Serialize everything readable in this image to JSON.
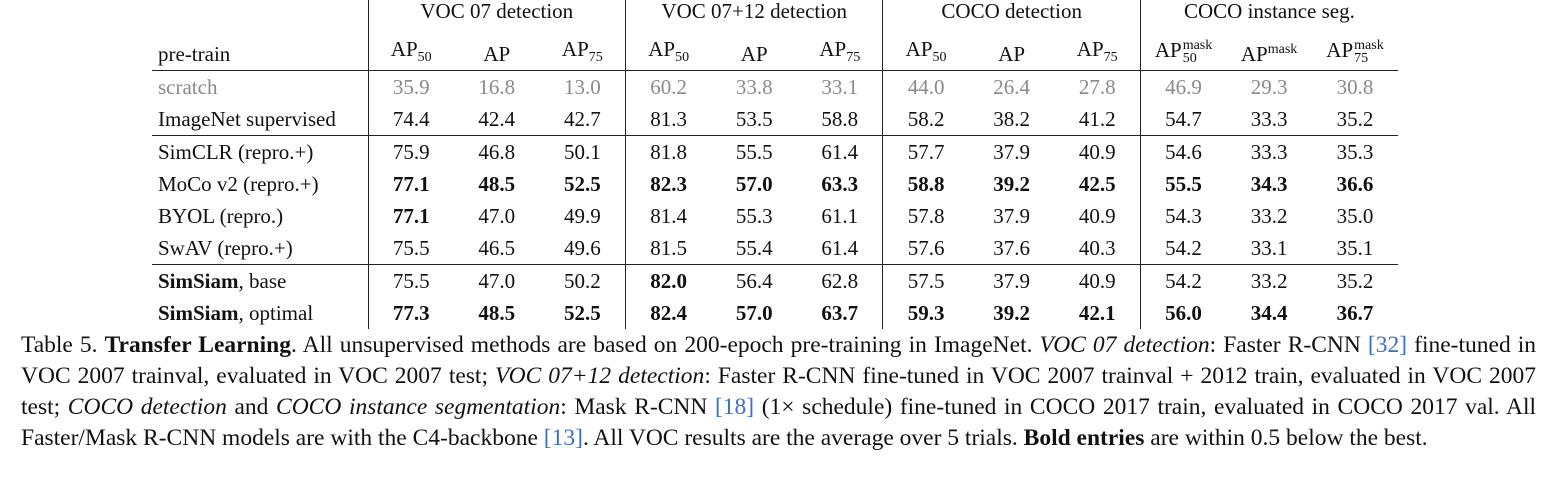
{
  "groups": [
    "VOC 07 detection",
    "VOC 07+12 detection",
    "COCO detection",
    "COCO instance seg."
  ],
  "header": {
    "label": "pre-train",
    "ap": "AP",
    "sub50": "50",
    "sub75": "75",
    "mask": "mask"
  },
  "rows": [
    {
      "name": "scratch",
      "name_bold": "",
      "name_rest": "",
      "values": [
        "35.9",
        "16.8",
        "13.0",
        "60.2",
        "33.8",
        "33.1",
        "44.0",
        "26.4",
        "27.8",
        "46.9",
        "29.3",
        "30.8"
      ],
      "bold": []
    },
    {
      "name": "ImageNet supervised",
      "name_bold": "",
      "name_rest": "",
      "values": [
        "74.4",
        "42.4",
        "42.7",
        "81.3",
        "53.5",
        "58.8",
        "58.2",
        "38.2",
        "41.2",
        "54.7",
        "33.3",
        "35.2"
      ],
      "bold": []
    },
    {
      "name": "SimCLR (repro.+)",
      "name_bold": "",
      "name_rest": "",
      "values": [
        "75.9",
        "46.8",
        "50.1",
        "81.8",
        "55.5",
        "61.4",
        "57.7",
        "37.9",
        "40.9",
        "54.6",
        "33.3",
        "35.3"
      ],
      "bold": []
    },
    {
      "name": "MoCo v2 (repro.+)",
      "name_bold": "",
      "name_rest": "",
      "values": [
        "77.1",
        "48.5",
        "52.5",
        "82.3",
        "57.0",
        "63.3",
        "58.8",
        "39.2",
        "42.5",
        "55.5",
        "34.3",
        "36.6"
      ],
      "bold": [
        0,
        1,
        2,
        3,
        4,
        5,
        6,
        7,
        8,
        9,
        10,
        11
      ]
    },
    {
      "name": "BYOL (repro.)",
      "name_bold": "",
      "name_rest": "",
      "values": [
        "77.1",
        "47.0",
        "49.9",
        "81.4",
        "55.3",
        "61.1",
        "57.8",
        "37.9",
        "40.9",
        "54.3",
        "33.2",
        "35.0"
      ],
      "bold": [
        0
      ]
    },
    {
      "name": "SwAV (repro.+)",
      "name_bold": "",
      "name_rest": "",
      "values": [
        "75.5",
        "46.5",
        "49.6",
        "81.5",
        "55.4",
        "61.4",
        "57.6",
        "37.6",
        "40.3",
        "54.2",
        "33.1",
        "35.1"
      ],
      "bold": []
    },
    {
      "name": "",
      "name_bold": "SimSiam",
      "name_rest": ", base",
      "values": [
        "75.5",
        "47.0",
        "50.2",
        "82.0",
        "56.4",
        "62.8",
        "57.5",
        "37.9",
        "40.9",
        "54.2",
        "33.2",
        "35.2"
      ],
      "bold": [
        3
      ]
    },
    {
      "name": "",
      "name_bold": "SimSiam",
      "name_rest": ", optimal",
      "values": [
        "77.3",
        "48.5",
        "52.5",
        "82.4",
        "57.0",
        "63.7",
        "59.3",
        "39.2",
        "42.1",
        "56.0",
        "34.4",
        "36.7"
      ],
      "bold": [
        0,
        1,
        2,
        3,
        4,
        5,
        6,
        7,
        8,
        9,
        10,
        11
      ]
    }
  ],
  "caption": {
    "lead": "Table 5.",
    "title": "Transfer Learning",
    "t1": ". All unsupervised methods are based on 200-epoch pre-training in ImageNet.",
    "i1": "VOC 07 detection",
    "t2": ": Faster R-CNN",
    "c1": "[32]",
    "t3": "fine-tuned in VOC 2007 trainval, evaluated in VOC 2007 test;",
    "i2": "VOC 07+12 detection",
    "t4": ": Faster R-CNN fine-tuned in VOC 2007 trainval + 2012 train, evaluated in VOC 2007 test;",
    "i3": "COCO detection",
    "t5": "and",
    "i4": "COCO instance segmentation",
    "t6": ": Mask R-CNN",
    "c2": "[18]",
    "t7": "(1× schedule) fine-tuned in COCO 2017 train, evaluated in COCO 2017 val. All Faster/Mask R-CNN models are with the C4-backbone",
    "c3": "[13]",
    "t8": ". All VOC results are the average over 5 trials.",
    "b1": "Bold entries",
    "t9": "are within 0.5 below the best."
  }
}
